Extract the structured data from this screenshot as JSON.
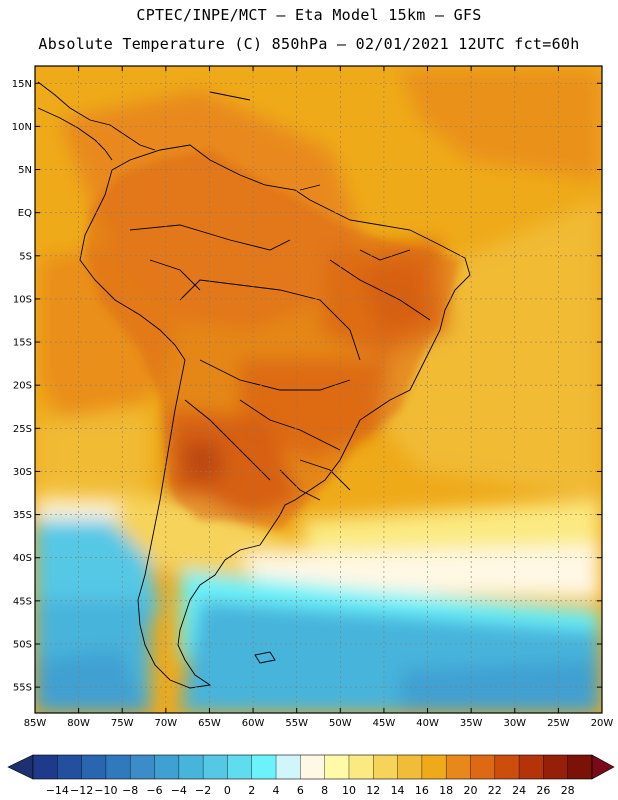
{
  "header": {
    "line1": "CPTEC/INPE/MCT –  Eta Model 15km – GFS",
    "line2": "Absolute Temperature (C) 850hPa – 02/01/2021 12UTC fct=60h"
  },
  "map": {
    "lat_labels": [
      "15N",
      "10N",
      "5N",
      "EQ",
      "5S",
      "10S",
      "15S",
      "20S",
      "25S",
      "30S",
      "35S",
      "40S",
      "45S",
      "50S",
      "55S"
    ],
    "lat_values": [
      15,
      10,
      5,
      0,
      -5,
      -10,
      -15,
      -20,
      -25,
      -30,
      -35,
      -40,
      -45,
      -50,
      -55
    ],
    "lon_labels": [
      "85W",
      "80W",
      "75W",
      "70W",
      "65W",
      "60W",
      "55W",
      "50W",
      "45W",
      "40W",
      "35W",
      "30W",
      "25W",
      "20W"
    ],
    "lon_values": [
      -85,
      -80,
      -75,
      -70,
      -65,
      -60,
      -55,
      -50,
      -45,
      -40,
      -35,
      -30,
      -25,
      -20
    ],
    "lon_range": [
      -85,
      -20
    ],
    "lat_range": [
      -58,
      17
    ]
  },
  "colorbar": {
    "labels": [
      "-14",
      "-12",
      "-10",
      "-8",
      "-6",
      "-4",
      "-2",
      "0",
      "2",
      "4",
      "6",
      "8",
      "10",
      "12",
      "14",
      "16",
      "18",
      "20",
      "22",
      "24",
      "26",
      "28"
    ],
    "colors": [
      "#1f3a8a",
      "#23509e",
      "#2a65b0",
      "#3179bd",
      "#3b8cc8",
      "#3fa0d2",
      "#47b4dc",
      "#55c8e6",
      "#5fdcee",
      "#6cf2fa",
      "#d0f6fc",
      "#fff8e4",
      "#fffaa8",
      "#fbea82",
      "#f6d35a",
      "#f1bc38",
      "#efaa1a",
      "#e8881a",
      "#dd6a12",
      "#cc4d0c",
      "#b43408",
      "#951f08",
      "#7a1208"
    ],
    "arrow_left": "#1f3070",
    "arrow_right": "#7a0a1a"
  }
}
